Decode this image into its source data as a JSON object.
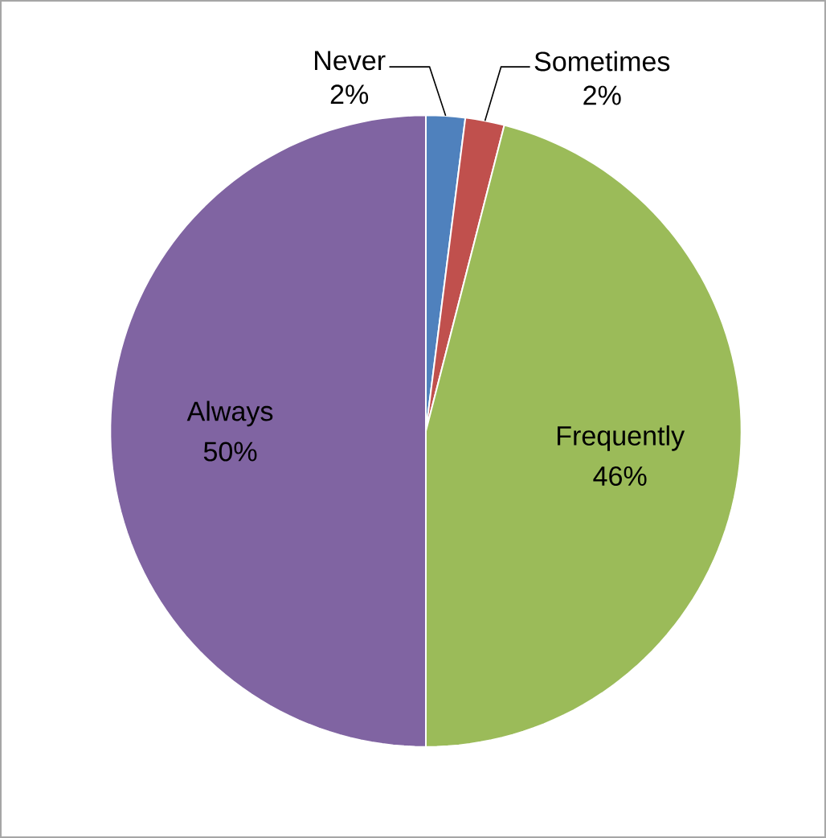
{
  "chart_data": {
    "type": "pie",
    "categories": [
      "Never",
      "Sometimes",
      "Frequently",
      "Always"
    ],
    "values": [
      2,
      2,
      46,
      50
    ],
    "value_labels": [
      "2%",
      "2%",
      "46%",
      "50%"
    ],
    "colors": [
      "#4f81bd",
      "#c0504d",
      "#9bbb59",
      "#8064a2"
    ]
  }
}
